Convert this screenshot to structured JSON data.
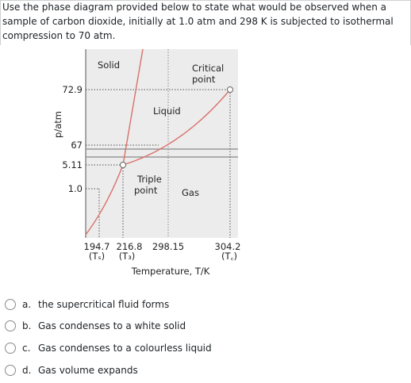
{
  "question": "Use the phase diagram provided below to state what would be observed when a sample of carbon dioxide, initially at 1.0 atm and 298 K is subjected to  isothermal compression to 70 atm.",
  "diagram": {
    "y_axis_label": "p/atm",
    "x_axis_label": "Temperature, T/K",
    "y_ticks": [
      "72.9",
      "67",
      "5.11",
      "1.0"
    ],
    "x_ticks": [
      {
        "value": "194.7",
        "symbol": "(Tₛ)"
      },
      {
        "value": "216.8",
        "symbol": "(T₃)"
      },
      {
        "value": "298.15"
      },
      {
        "value": "304.2",
        "symbol": "(T꜀)"
      }
    ],
    "regions": [
      "Solid",
      "Liquid",
      "Gas"
    ],
    "critical_point": [
      "Critical",
      "point"
    ],
    "triple_point": [
      "Triple",
      "point"
    ]
  },
  "options": [
    {
      "letter": "a.",
      "text": "the supercritical fluid forms"
    },
    {
      "letter": "b.",
      "text": "Gas condenses to a white solid"
    },
    {
      "letter": "c.",
      "text": "Gas condenses to a colourless liquid"
    },
    {
      "letter": "d.",
      "text": "Gas volume expands"
    }
  ]
}
